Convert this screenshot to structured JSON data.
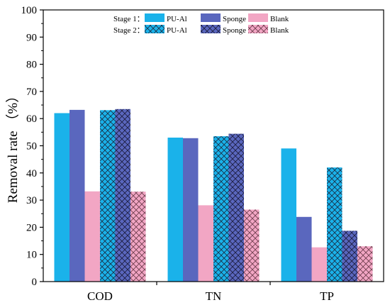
{
  "chart_data": {
    "type": "bar",
    "title": "",
    "xlabel": "",
    "ylabel": "Removal rate （%）",
    "ylim": [
      0,
      100
    ],
    "yticks": [
      0,
      10,
      20,
      30,
      40,
      50,
      60,
      70,
      80,
      90,
      100
    ],
    "categories": [
      "COD",
      "TN",
      "TP"
    ],
    "series": [
      {
        "name": "PU-Al",
        "stage": "Stage 1",
        "color": "#1ab2ea",
        "pattern": "solid",
        "values": [
          62.0,
          53.0,
          49.0
        ]
      },
      {
        "name": "Sponge",
        "stage": "Stage 1",
        "color": "#5a67be",
        "pattern": "solid",
        "values": [
          63.2,
          52.8,
          23.8
        ]
      },
      {
        "name": "Blank",
        "stage": "Stage 1",
        "color": "#f2a6c4",
        "pattern": "solid",
        "values": [
          33.2,
          28.1,
          12.6
        ]
      },
      {
        "name": "PU-Al",
        "stage": "Stage 2",
        "color": "#1ab2ea",
        "pattern": "crosshatch",
        "values": [
          63.1,
          53.5,
          42.0
        ]
      },
      {
        "name": "Sponge",
        "stage": "Stage 2",
        "color": "#5a67be",
        "pattern": "crosshatch",
        "values": [
          63.5,
          54.4,
          18.7
        ]
      },
      {
        "name": "Blank",
        "stage": "Stage 2",
        "color": "#f2a6c4",
        "pattern": "crosshatch",
        "values": [
          33.1,
          26.5,
          13.0
        ]
      }
    ],
    "legend": {
      "placement": "top",
      "rows": [
        {
          "label": "Stage 1：",
          "stage": "Stage 1"
        },
        {
          "label": "Stage 2：",
          "stage": "Stage 2"
        }
      ]
    },
    "grid": false
  }
}
